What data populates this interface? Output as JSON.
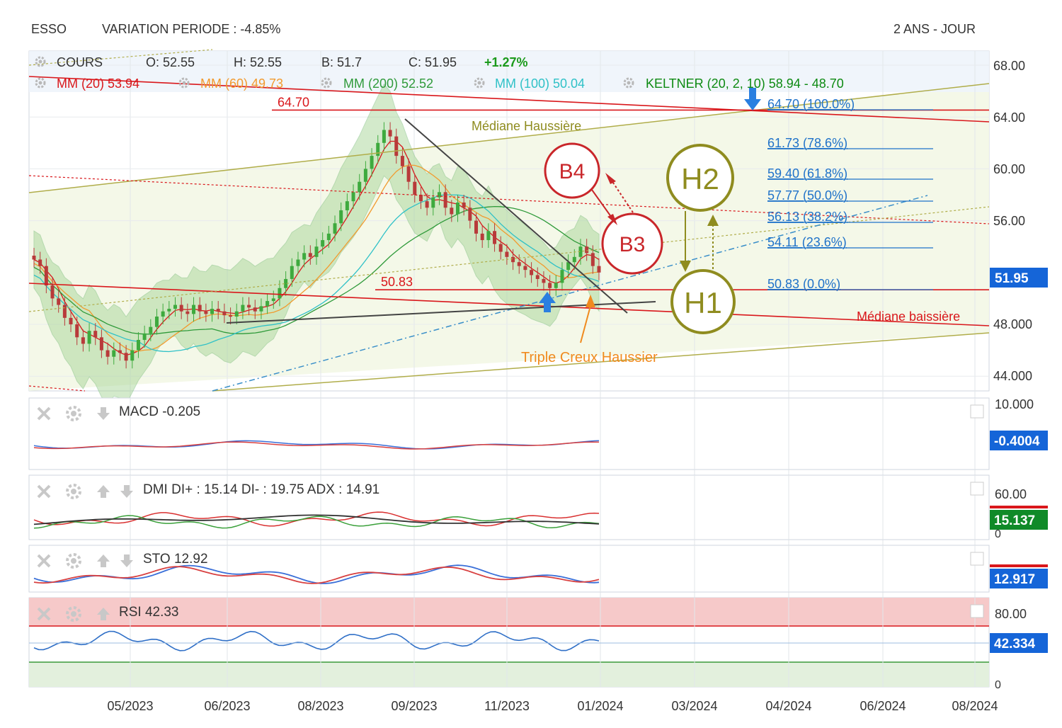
{
  "header": {
    "ticker": "ESSO",
    "variation": "VARIATION PERIODE : -4.85%",
    "period": "2 ANS - JOUR"
  },
  "colors": {
    "red": "#d9171b",
    "orange": "#f29a2e",
    "green": "#2f9a3a",
    "teal": "#2fc1c7",
    "darkgreen": "#0d8a12",
    "olive": "#9a9a22",
    "blue": "#1f72c9",
    "badge": "#1565d8",
    "rsiZone": "#f6c9c9"
  },
  "main_legend": {
    "row1": [
      {
        "label": "COURS",
        "color": "#333333"
      },
      {
        "label": "O: 52.55",
        "color": "#333333"
      },
      {
        "label": "H: 52.55",
        "color": "#333333"
      },
      {
        "label": "B: 51.7",
        "color": "#333333"
      },
      {
        "label": "C: 51.95",
        "color": "#333333"
      },
      {
        "label": "+1.27%",
        "color": "#1b9a1b"
      }
    ],
    "row2": [
      {
        "name": "MM (20)",
        "value": "53.94",
        "color": "#d9171b"
      },
      {
        "name": "MM (60)",
        "value": "49.73",
        "color": "#f29a2e"
      },
      {
        "name": "MM (200)",
        "value": "52.52",
        "color": "#2f9a3a"
      },
      {
        "name": "MM (100)",
        "value": "50.04",
        "color": "#2fc1c7"
      },
      {
        "name": "KELTNER (20, 2, 10)",
        "value": "58.94 - 48.70",
        "color": "#0d8a12"
      }
    ]
  },
  "chart_data": [
    {
      "type": "line",
      "panel": "price",
      "x_ticks": [
        "05/2023",
        "06/2023",
        "08/2023",
        "09/2023",
        "11/2023",
        "01/2024",
        "03/2024",
        "04/2024",
        "06/2024",
        "08/2024"
      ],
      "y_ticks": [
        "68.00",
        "64.00",
        "60.00",
        "56.00",
        "51.95",
        "48.000",
        "44.000"
      ],
      "ylim": [
        43,
        69
      ],
      "last_price": "51.95",
      "fibonacci": [
        {
          "label": "64.70  (100.0%)",
          "value": 64.7
        },
        {
          "label": "61.73  (78.6%)",
          "value": 61.73
        },
        {
          "label": "59.40  (61.8%)",
          "value": 59.4
        },
        {
          "label": "57.77  (50.0%)",
          "value": 57.77
        },
        {
          "label": "56.13  (38.2%)",
          "value": 56.13
        },
        {
          "label": "54.11  (23.6%)",
          "value": 54.11
        },
        {
          "label": "50.83  (0.0%)",
          "value": 50.83
        }
      ],
      "levels": [
        {
          "label": "64.70",
          "value": 64.7
        },
        {
          "label": "50.83",
          "value": 50.83
        }
      ],
      "annotations": {
        "median_up": "Médiane Haussière",
        "median_down": "Médiane baissière",
        "triple": "Triple Creux Haussier",
        "b4": "B4",
        "b3": "B3",
        "h2": "H2",
        "h1": "H1"
      }
    },
    {
      "type": "line",
      "panel": "macd",
      "name": "MACD",
      "value": "-0.205",
      "y_ticks": [
        "10.000"
      ],
      "badge": "-0.4004"
    },
    {
      "type": "line",
      "panel": "dmi",
      "name": "DMI",
      "value": "DI+ : 15.14 DI- : 19.75 ADX : 14.91",
      "y_ticks": [
        "60.00",
        "0"
      ],
      "badge": "15.137"
    },
    {
      "type": "line",
      "panel": "sto",
      "name": "STO",
      "value": "12.92",
      "badge": "12.917"
    },
    {
      "type": "line",
      "panel": "rsi",
      "name": "RSI",
      "value": "42.33",
      "y_ticks": [
        "80.00",
        "0"
      ],
      "badge": "42.334"
    }
  ]
}
